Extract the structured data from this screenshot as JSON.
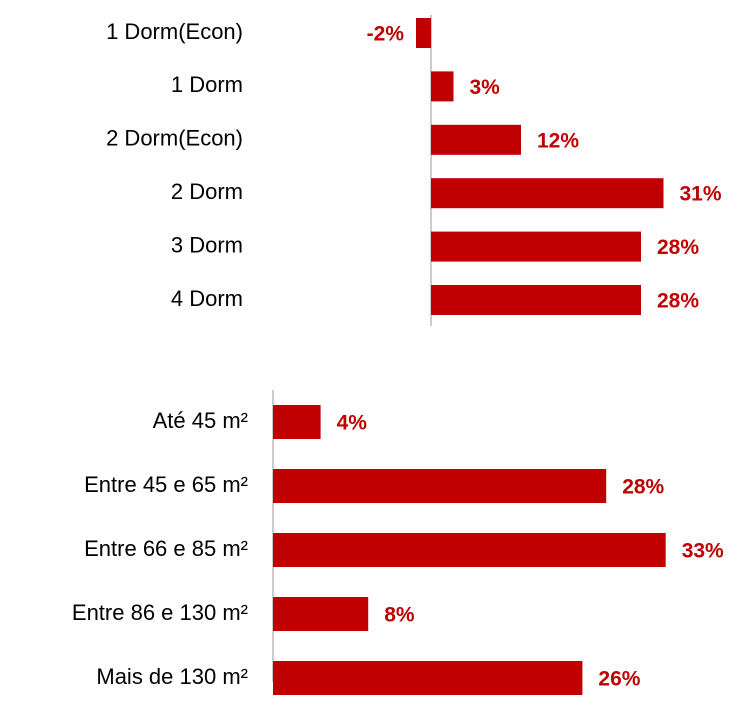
{
  "chart_data": [
    {
      "type": "bar",
      "orientation": "horizontal",
      "color": "#c00000",
      "categories": [
        "1 Dorm(Econ)",
        "1 Dorm",
        "2 Dorm(Econ)",
        "2 Dorm",
        "3 Dorm",
        "4 Dorm"
      ],
      "values": [
        -2,
        3,
        12,
        31,
        28,
        28
      ],
      "value_labels": [
        "-2%",
        "3%",
        "12%",
        "31%",
        "28%",
        "28%"
      ]
    },
    {
      "type": "bar",
      "orientation": "horizontal",
      "color": "#c00000",
      "categories": [
        "Até 45 m²",
        "Entre 45 e 65 m²",
        "Entre 66 e 85 m²",
        "Entre 86 e 130 m²",
        "Mais de 130 m²"
      ],
      "values": [
        4,
        28,
        33,
        8,
        26
      ],
      "value_labels": [
        "4%",
        "28%",
        "33%",
        "8%",
        "26%"
      ]
    }
  ]
}
